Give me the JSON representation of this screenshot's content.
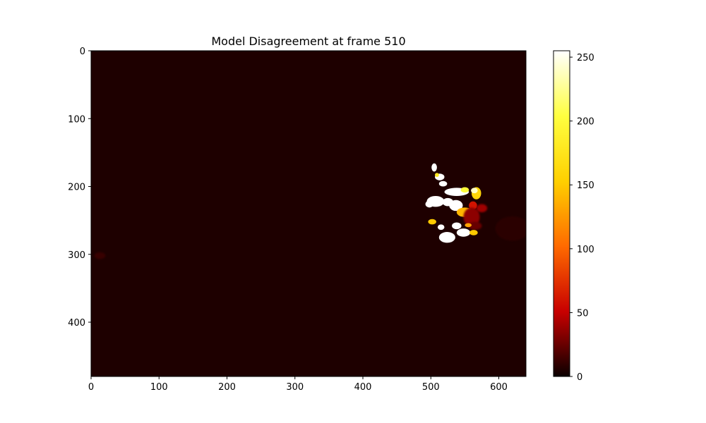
{
  "chart_data": {
    "type": "heatmap",
    "title": "Model Disagreement at frame 510",
    "xlabel": "",
    "ylabel": "",
    "image_width": 640,
    "image_height": 480,
    "xlim": [
      0,
      640
    ],
    "ylim": [
      480,
      0
    ],
    "x_ticks": [
      0,
      100,
      200,
      300,
      400,
      500,
      600
    ],
    "y_ticks": [
      0,
      100,
      200,
      300,
      400
    ],
    "colormap": "hot",
    "colormap_stops": [
      "#0b0000",
      "#c80000",
      "#ff6a00",
      "#ffd000",
      "#ffff40",
      "#ffffff"
    ],
    "background_value": 5,
    "colorbar": {
      "range": [
        0,
        255
      ],
      "ticks": [
        0,
        50,
        100,
        150,
        200,
        250
      ]
    },
    "grid": false,
    "hotspots": [
      {
        "cx": 505,
        "cy": 172,
        "rx": 4,
        "ry": 6,
        "value": 255
      },
      {
        "cx": 513,
        "cy": 186,
        "rx": 7,
        "ry": 5,
        "value": 255
      },
      {
        "cx": 509,
        "cy": 183,
        "rx": 3,
        "ry": 3,
        "value": 180
      },
      {
        "cx": 518,
        "cy": 196,
        "rx": 6,
        "ry": 4,
        "value": 255
      },
      {
        "cx": 538,
        "cy": 208,
        "rx": 18,
        "ry": 6,
        "value": 255
      },
      {
        "cx": 550,
        "cy": 205,
        "rx": 6,
        "ry": 4,
        "value": 200
      },
      {
        "cx": 567,
        "cy": 210,
        "rx": 7,
        "ry": 9,
        "value": 160
      },
      {
        "cx": 564,
        "cy": 206,
        "rx": 5,
        "ry": 4,
        "value": 240
      },
      {
        "cx": 562,
        "cy": 228,
        "rx": 6,
        "ry": 6,
        "value": 60
      },
      {
        "cx": 507,
        "cy": 222,
        "rx": 13,
        "ry": 8,
        "value": 255
      },
      {
        "cx": 498,
        "cy": 226,
        "rx": 6,
        "ry": 5,
        "value": 255
      },
      {
        "cx": 525,
        "cy": 223,
        "rx": 8,
        "ry": 6,
        "value": 255
      },
      {
        "cx": 537,
        "cy": 228,
        "rx": 10,
        "ry": 8,
        "value": 255
      },
      {
        "cx": 550,
        "cy": 238,
        "rx": 12,
        "ry": 7,
        "value": 140
      },
      {
        "cx": 560,
        "cy": 245,
        "rx": 12,
        "ry": 14,
        "value": 35
      },
      {
        "cx": 575,
        "cy": 232,
        "rx": 8,
        "ry": 6,
        "value": 40
      },
      {
        "cx": 565,
        "cy": 258,
        "rx": 10,
        "ry": 6,
        "value": 25
      },
      {
        "cx": 502,
        "cy": 252,
        "rx": 6,
        "ry": 4,
        "value": 150
      },
      {
        "cx": 515,
        "cy": 260,
        "rx": 5,
        "ry": 4,
        "value": 255
      },
      {
        "cx": 538,
        "cy": 258,
        "rx": 7,
        "ry": 5,
        "value": 255
      },
      {
        "cx": 524,
        "cy": 275,
        "rx": 12,
        "ry": 8,
        "value": 255
      },
      {
        "cx": 548,
        "cy": 268,
        "rx": 10,
        "ry": 6,
        "value": 255
      },
      {
        "cx": 563,
        "cy": 268,
        "rx": 6,
        "ry": 4,
        "value": 150
      },
      {
        "cx": 555,
        "cy": 257,
        "rx": 5,
        "ry": 3,
        "value": 130
      },
      {
        "cx": 13,
        "cy": 302,
        "rx": 8,
        "ry": 5,
        "value": 12
      },
      {
        "cx": 620,
        "cy": 262,
        "rx": 25,
        "ry": 18,
        "value": 9
      }
    ]
  }
}
